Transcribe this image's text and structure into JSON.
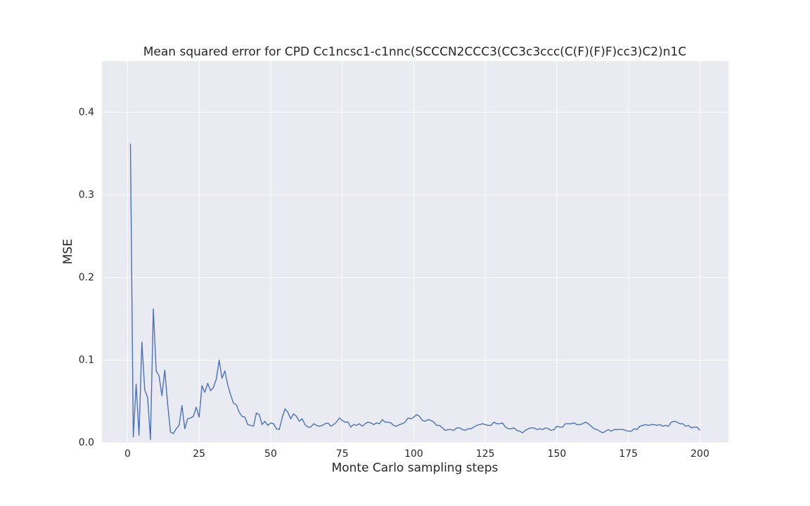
{
  "chart_data": {
    "type": "line",
    "title": "Mean squared error for CPD Cc1ncsc1-c1nnc(SCCCN2CCC3(CC3c3ccc(C(F)(F)F)cc3)C2)n1C",
    "x_label": "Monte Carlo sampling steps",
    "y_label": "MSE",
    "color": "#4c72b0",
    "grid": true,
    "xlim": [
      -8.95,
      209.95
    ],
    "ylim": [
      0,
      0.462
    ],
    "xticks": [
      0,
      25,
      50,
      75,
      100,
      125,
      150,
      175,
      200
    ],
    "yticks": [
      {
        "value": 0,
        "label": "0.0"
      },
      0.1,
      0.2,
      0.3,
      0.4
    ],
    "x": [
      1,
      2,
      3,
      4,
      5,
      6,
      7,
      8,
      9,
      10,
      11,
      12,
      13,
      14,
      15,
      16,
      17,
      18,
      19,
      20,
      21,
      22,
      23,
      24,
      25,
      26,
      27,
      28,
      29,
      30,
      31,
      32,
      33,
      34,
      35,
      36,
      37,
      38,
      39,
      40,
      41,
      42,
      43,
      44,
      45,
      46,
      47,
      48,
      49,
      50,
      51,
      52,
      53,
      54,
      55,
      56,
      57,
      58,
      59,
      60,
      61,
      62,
      63,
      64,
      65,
      66,
      67,
      68,
      69,
      70,
      71,
      72,
      73,
      74,
      75,
      76,
      77,
      78,
      79,
      80,
      81,
      82,
      83,
      84,
      85,
      86,
      87,
      88,
      89,
      90,
      91,
      92,
      93,
      94,
      95,
      96,
      97,
      98,
      99,
      100,
      101,
      102,
      103,
      104,
      105,
      106,
      107,
      108,
      109,
      110,
      111,
      112,
      113,
      114,
      115,
      116,
      117,
      118,
      119,
      120,
      121,
      122,
      123,
      124,
      125,
      126,
      127,
      128,
      129,
      130,
      131,
      132,
      133,
      134,
      135,
      136,
      137,
      138,
      139,
      140,
      141,
      142,
      143,
      144,
      145,
      146,
      147,
      148,
      149,
      150,
      151,
      152,
      153,
      154,
      155,
      156,
      157,
      158,
      159,
      160,
      161,
      162,
      163,
      164,
      165,
      166,
      167,
      168,
      169,
      170,
      171,
      172,
      173,
      174,
      175,
      176,
      177,
      178,
      179,
      180,
      181,
      182,
      183,
      184,
      185,
      186,
      187,
      188,
      189,
      190,
      191,
      192,
      193,
      194,
      195,
      196,
      197,
      198,
      199,
      200
    ],
    "values": [
      0.362,
      0.007,
      0.071,
      0.009,
      0.122,
      0.064,
      0.055,
      0.004,
      0.162,
      0.087,
      0.081,
      0.057,
      0.088,
      0.047,
      0.013,
      0.011,
      0.017,
      0.021,
      0.045,
      0.017,
      0.029,
      0.03,
      0.032,
      0.043,
      0.031,
      0.069,
      0.061,
      0.072,
      0.063,
      0.067,
      0.077,
      0.1,
      0.078,
      0.087,
      0.07,
      0.058,
      0.048,
      0.046,
      0.037,
      0.032,
      0.031,
      0.022,
      0.021,
      0.02,
      0.036,
      0.034,
      0.022,
      0.026,
      0.021,
      0.024,
      0.023,
      0.017,
      0.016,
      0.03,
      0.041,
      0.037,
      0.029,
      0.035,
      0.032,
      0.026,
      0.029,
      0.022,
      0.019,
      0.019,
      0.023,
      0.021,
      0.02,
      0.021,
      0.023,
      0.024,
      0.02,
      0.022,
      0.025,
      0.03,
      0.027,
      0.025,
      0.025,
      0.019,
      0.022,
      0.021,
      0.023,
      0.02,
      0.023,
      0.025,
      0.024,
      0.022,
      0.024,
      0.023,
      0.028,
      0.025,
      0.025,
      0.024,
      0.021,
      0.02,
      0.022,
      0.023,
      0.025,
      0.03,
      0.029,
      0.031,
      0.034,
      0.032,
      0.027,
      0.026,
      0.028,
      0.027,
      0.025,
      0.021,
      0.021,
      0.018,
      0.015,
      0.016,
      0.016,
      0.015,
      0.018,
      0.018,
      0.016,
      0.015,
      0.017,
      0.017,
      0.019,
      0.021,
      0.022,
      0.023,
      0.022,
      0.021,
      0.021,
      0.025,
      0.023,
      0.023,
      0.024,
      0.019,
      0.017,
      0.017,
      0.018,
      0.015,
      0.014,
      0.012,
      0.015,
      0.017,
      0.018,
      0.018,
      0.016,
      0.017,
      0.016,
      0.018,
      0.017,
      0.015,
      0.016,
      0.02,
      0.019,
      0.019,
      0.023,
      0.023,
      0.023,
      0.024,
      0.022,
      0.022,
      0.023,
      0.025,
      0.023,
      0.02,
      0.017,
      0.016,
      0.014,
      0.012,
      0.014,
      0.016,
      0.014,
      0.016,
      0.016,
      0.016,
      0.016,
      0.015,
      0.014,
      0.014,
      0.017,
      0.016,
      0.02,
      0.021,
      0.022,
      0.021,
      0.022,
      0.022,
      0.021,
      0.022,
      0.02,
      0.021,
      0.02,
      0.025,
      0.026,
      0.025,
      0.023,
      0.023,
      0.02,
      0.021,
      0.018,
      0.019,
      0.019,
      0.015
    ]
  }
}
